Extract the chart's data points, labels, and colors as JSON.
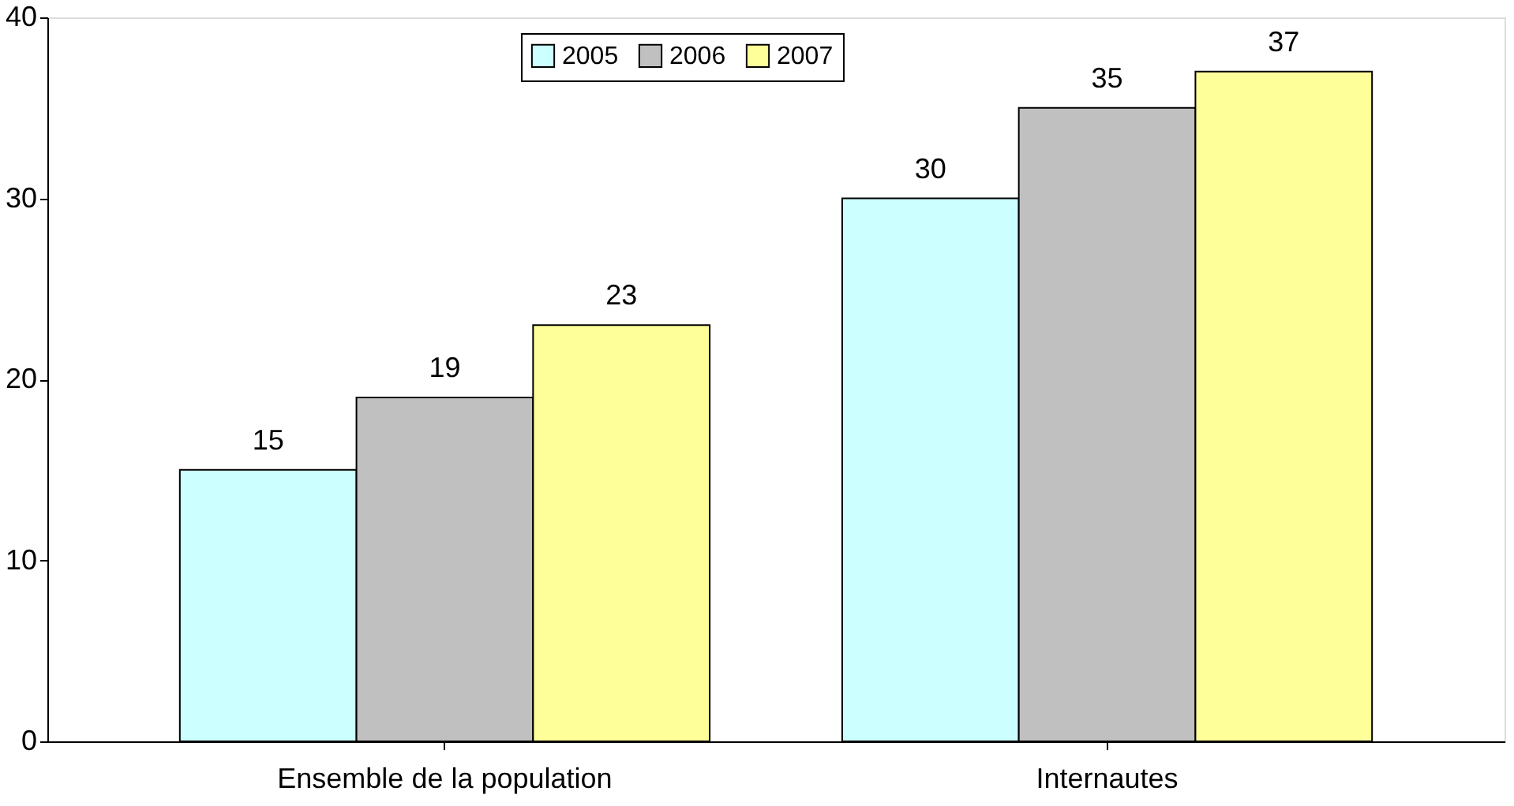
{
  "chart_data": {
    "type": "bar",
    "categories": [
      "Ensemble de la population",
      "Internautes"
    ],
    "series": [
      {
        "name": "2005",
        "color": "#ccffff",
        "values": [
          15,
          30
        ]
      },
      {
        "name": "2006",
        "color": "#c0c0c0",
        "values": [
          19,
          35
        ]
      },
      {
        "name": "2007",
        "color": "#ffff99",
        "values": [
          23,
          37
        ]
      }
    ],
    "ylim": [
      0,
      40
    ],
    "yticks": [
      0,
      10,
      20,
      30,
      40
    ],
    "grid": false,
    "legend": "top",
    "data_labels": true
  }
}
